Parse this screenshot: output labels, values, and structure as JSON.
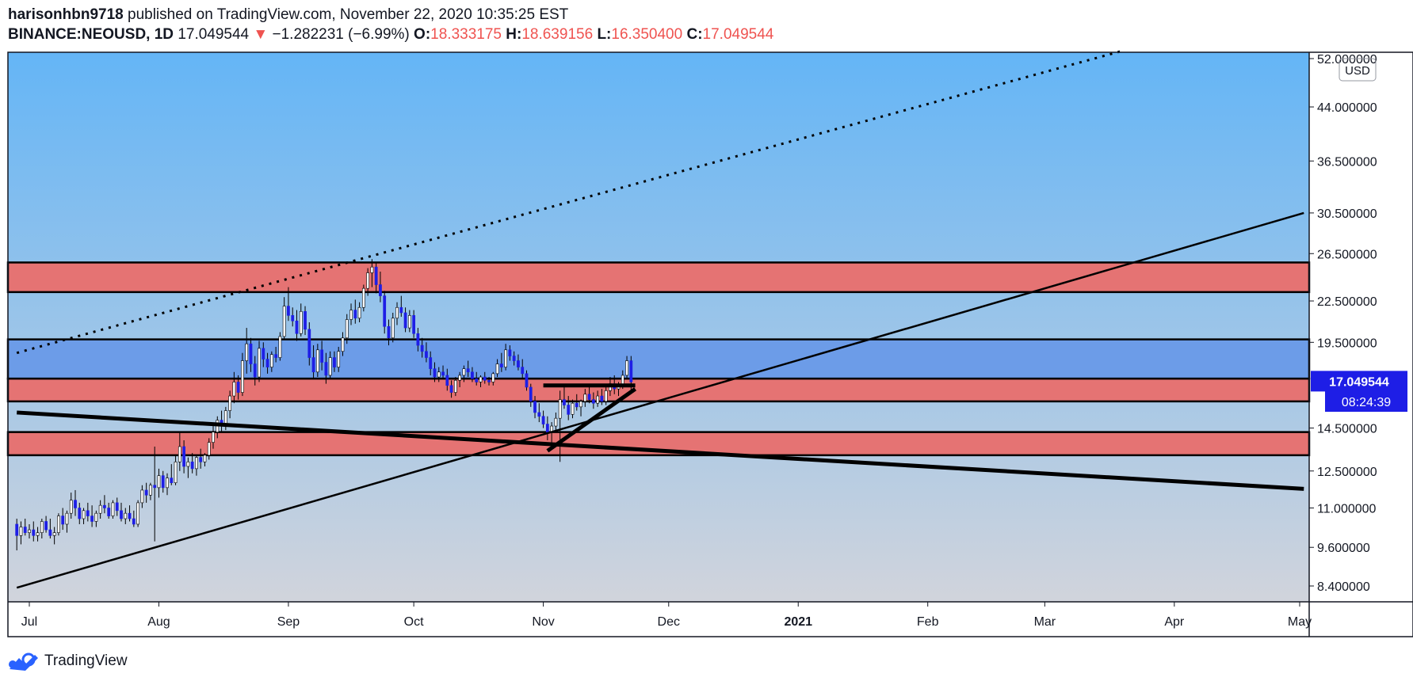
{
  "header": {
    "author": "harisonhbn9718",
    "published_text": "published on TradingView.com, November 22, 2020 10:35:25 EST",
    "symbol": "BINANCE:NEOUSD, 1D",
    "last": "17.049544",
    "change": "−1.282231 (−6.99%)",
    "o_label": "O:",
    "o": "18.333175",
    "h_label": "H:",
    "h": "18.639156",
    "l_label": "L:",
    "l": "16.350400",
    "c_label": "C:",
    "c": "17.049544"
  },
  "footer": {
    "brand": "TradingView",
    "logo_icon": "tradingview-logo-icon"
  },
  "colors": {
    "bg_top": "#64b5f6",
    "bg_bottom": "#d1d4dc",
    "zone_red": "#e57373",
    "zone_blue": "#6c9ce8",
    "candle_up": "#ffffff",
    "candle_down": "#1e1ee6",
    "price_label_bg": "#1e1ee6"
  },
  "chart_data": {
    "type": "candlestick",
    "scale": "log",
    "currency": "USD",
    "x_tick_labels": [
      "Jul",
      "Aug",
      "Sep",
      "Oct",
      "Nov",
      "Dec",
      "2021",
      "Feb",
      "Mar",
      "Apr",
      "May"
    ],
    "y_tick_labels": [
      "52.000000",
      "44.000000",
      "36.500000",
      "30.500000",
      "26.500000",
      "22.500000",
      "19.500000",
      "14.500000",
      "12.500000",
      "11.000000",
      "9.600000",
      "8.400000"
    ],
    "y_tick_values": [
      52,
      44,
      36.5,
      30.5,
      26.5,
      22.5,
      19.5,
      14.5,
      12.5,
      11,
      9.6,
      8.4
    ],
    "last_price_label": "17.049544",
    "countdown_label": "08:24:39",
    "zones": [
      {
        "color": "red",
        "from": 23.2,
        "to": 25.7
      },
      {
        "color": "blue",
        "from": 17.2,
        "to": 19.7
      },
      {
        "color": "red",
        "from": 15.9,
        "to": 17.2
      },
      {
        "color": "red",
        "from": 13.2,
        "to": 14.3
      }
    ],
    "trendlines": [
      {
        "style": "dotted",
        "from": [
          "2020-06-28",
          18.8
        ],
        "to": [
          "2021-03-20",
          53.5
        ]
      },
      {
        "style": "solid",
        "from": [
          "2020-06-28",
          8.35
        ],
        "to": [
          "2021-05-02",
          30.5
        ]
      },
      {
        "style": "thick",
        "from": [
          "2020-06-28",
          15.3
        ],
        "to": [
          "2021-05-02",
          11.75
        ]
      },
      {
        "style": "thick",
        "from": [
          "2020-11-01",
          16.8
        ],
        "to": [
          "2020-11-23",
          16.8
        ]
      },
      {
        "style": "thick",
        "from": [
          "2020-11-02",
          13.4
        ],
        "to": [
          "2020-11-23",
          16.6
        ]
      }
    ],
    "candles": [
      [
        "2020-06-28",
        10.4,
        10.6,
        9.5,
        10.0
      ],
      [
        "2020-06-29",
        10.0,
        10.5,
        9.7,
        10.3
      ],
      [
        "2020-06-30",
        10.3,
        10.6,
        10.0,
        10.1
      ],
      [
        "2020-07-01",
        10.1,
        10.4,
        9.9,
        10.2
      ],
      [
        "2020-07-02",
        10.2,
        10.5,
        9.8,
        10.0
      ],
      [
        "2020-07-03",
        10.0,
        10.3,
        9.8,
        10.1
      ],
      [
        "2020-07-04",
        10.1,
        10.6,
        9.9,
        10.5
      ],
      [
        "2020-07-05",
        10.5,
        10.7,
        10.1,
        10.2
      ],
      [
        "2020-07-06",
        10.2,
        10.6,
        9.9,
        10.0
      ],
      [
        "2020-07-07",
        10.0,
        10.3,
        9.7,
        10.1
      ],
      [
        "2020-07-08",
        10.1,
        10.8,
        10.0,
        10.7
      ],
      [
        "2020-07-09",
        10.7,
        11.0,
        10.2,
        10.4
      ],
      [
        "2020-07-10",
        10.4,
        10.9,
        10.1,
        10.8
      ],
      [
        "2020-07-11",
        10.8,
        11.6,
        10.6,
        11.3
      ],
      [
        "2020-07-12",
        11.3,
        11.7,
        10.7,
        11.0
      ],
      [
        "2020-07-13",
        11.0,
        11.2,
        10.4,
        10.6
      ],
      [
        "2020-07-14",
        10.6,
        11.0,
        10.4,
        10.9
      ],
      [
        "2020-07-15",
        10.9,
        11.2,
        10.5,
        10.7
      ],
      [
        "2020-07-16",
        10.7,
        11.1,
        10.3,
        10.5
      ],
      [
        "2020-07-17",
        10.5,
        10.9,
        10.3,
        10.8
      ],
      [
        "2020-07-18",
        10.8,
        11.3,
        10.6,
        11.1
      ],
      [
        "2020-07-19",
        11.1,
        11.5,
        10.8,
        11.0
      ],
      [
        "2020-07-20",
        11.0,
        11.2,
        10.6,
        10.7
      ],
      [
        "2020-07-21",
        10.7,
        11.3,
        10.6,
        11.2
      ],
      [
        "2020-07-22",
        11.2,
        11.4,
        10.7,
        10.9
      ],
      [
        "2020-07-23",
        10.9,
        11.2,
        10.5,
        10.6
      ],
      [
        "2020-07-24",
        10.6,
        11.0,
        10.4,
        10.8
      ],
      [
        "2020-07-25",
        10.8,
        11.1,
        10.5,
        10.6
      ],
      [
        "2020-07-26",
        10.6,
        10.9,
        10.3,
        10.4
      ],
      [
        "2020-07-27",
        10.4,
        11.3,
        10.3,
        11.2
      ],
      [
        "2020-07-28",
        11.2,
        11.9,
        11.0,
        11.7
      ],
      [
        "2020-07-29",
        11.7,
        12.0,
        11.2,
        11.5
      ],
      [
        "2020-07-30",
        11.5,
        12.0,
        11.3,
        11.9
      ],
      [
        "2020-07-31",
        11.9,
        13.6,
        9.8,
        11.8
      ],
      [
        "2020-08-01",
        11.8,
        12.6,
        11.4,
        12.3
      ],
      [
        "2020-08-02",
        12.3,
        12.5,
        11.6,
        11.8
      ],
      [
        "2020-08-03",
        11.8,
        12.4,
        11.5,
        12.2
      ],
      [
        "2020-08-04",
        12.2,
        12.8,
        11.9,
        12.0
      ],
      [
        "2020-08-05",
        12.0,
        13.2,
        11.9,
        12.9
      ],
      [
        "2020-08-06",
        12.9,
        14.3,
        12.5,
        13.6
      ],
      [
        "2020-08-07",
        13.6,
        13.9,
        12.4,
        12.7
      ],
      [
        "2020-08-08",
        12.7,
        13.1,
        12.2,
        12.9
      ],
      [
        "2020-08-09",
        12.9,
        13.3,
        12.4,
        12.6
      ],
      [
        "2020-08-10",
        12.6,
        13.2,
        12.3,
        13.1
      ],
      [
        "2020-08-11",
        13.1,
        13.5,
        12.6,
        12.9
      ],
      [
        "2020-08-12",
        12.9,
        13.3,
        12.7,
        13.2
      ],
      [
        "2020-08-13",
        13.2,
        14.0,
        13.0,
        13.8
      ],
      [
        "2020-08-14",
        13.8,
        14.6,
        13.5,
        14.3
      ],
      [
        "2020-08-15",
        14.3,
        15.1,
        14.0,
        14.9
      ],
      [
        "2020-08-16",
        14.9,
        15.4,
        14.3,
        14.6
      ],
      [
        "2020-08-17",
        14.6,
        15.6,
        14.4,
        15.4
      ],
      [
        "2020-08-18",
        15.4,
        16.5,
        15.0,
        16.2
      ],
      [
        "2020-08-19",
        16.2,
        17.6,
        15.8,
        17.0
      ],
      [
        "2020-08-20",
        17.0,
        17.4,
        16.0,
        16.4
      ],
      [
        "2020-08-21",
        16.4,
        18.8,
        16.2,
        18.3
      ],
      [
        "2020-08-22",
        18.3,
        20.5,
        17.5,
        19.4
      ],
      [
        "2020-08-23",
        19.4,
        19.8,
        17.6,
        18.1
      ],
      [
        "2020-08-24",
        18.1,
        18.6,
        16.8,
        17.3
      ],
      [
        "2020-08-25",
        17.3,
        19.6,
        17.0,
        19.1
      ],
      [
        "2020-08-26",
        19.1,
        19.5,
        17.9,
        18.4
      ],
      [
        "2020-08-27",
        18.4,
        18.8,
        17.5,
        17.9
      ],
      [
        "2020-08-28",
        17.9,
        18.9,
        17.6,
        18.7
      ],
      [
        "2020-08-29",
        18.7,
        19.2,
        18.2,
        18.5
      ],
      [
        "2020-08-30",
        18.5,
        20.2,
        18.3,
        19.9
      ],
      [
        "2020-08-31",
        19.9,
        22.8,
        19.7,
        22.1
      ],
      [
        "2020-09-01",
        22.1,
        23.6,
        21.0,
        21.4
      ],
      [
        "2020-09-02",
        21.4,
        22.0,
        20.6,
        21.0
      ],
      [
        "2020-09-03",
        21.0,
        21.8,
        19.6,
        20.1
      ],
      [
        "2020-09-04",
        20.1,
        22.3,
        19.9,
        21.7
      ],
      [
        "2020-09-05",
        21.7,
        22.1,
        20.0,
        20.4
      ],
      [
        "2020-09-06",
        20.4,
        20.9,
        18.0,
        18.5
      ],
      [
        "2020-09-07",
        18.5,
        19.3,
        17.2,
        17.6
      ],
      [
        "2020-09-08",
        17.6,
        19.4,
        17.3,
        19.0
      ],
      [
        "2020-09-09",
        19.0,
        19.6,
        17.7,
        18.2
      ],
      [
        "2020-09-10",
        18.2,
        18.8,
        16.9,
        17.4
      ],
      [
        "2020-09-11",
        17.4,
        18.9,
        17.2,
        18.5
      ],
      [
        "2020-09-12",
        18.5,
        18.9,
        17.6,
        17.9
      ],
      [
        "2020-09-13",
        17.9,
        19.2,
        17.6,
        18.9
      ],
      [
        "2020-09-14",
        18.9,
        20.2,
        18.6,
        19.8
      ],
      [
        "2020-09-15",
        19.8,
        21.5,
        19.4,
        21.1
      ],
      [
        "2020-09-16",
        21.1,
        22.3,
        20.7,
        21.8
      ],
      [
        "2020-09-17",
        21.8,
        22.6,
        20.8,
        21.2
      ],
      [
        "2020-09-18",
        21.2,
        22.4,
        20.9,
        22.0
      ],
      [
        "2020-09-19",
        22.0,
        23.8,
        21.7,
        23.5
      ],
      [
        "2020-09-20",
        23.5,
        25.2,
        22.9,
        24.8
      ],
      [
        "2020-09-21",
        24.8,
        26.0,
        23.6,
        25.3
      ],
      [
        "2020-09-22",
        25.3,
        25.7,
        23.1,
        23.8
      ],
      [
        "2020-09-23",
        23.8,
        24.9,
        22.4,
        22.9
      ],
      [
        "2020-09-24",
        22.9,
        23.3,
        20.1,
        20.6
      ],
      [
        "2020-09-25",
        20.6,
        21.1,
        19.3,
        19.8
      ],
      [
        "2020-09-26",
        19.8,
        21.6,
        19.5,
        21.2
      ],
      [
        "2020-09-27",
        21.2,
        22.4,
        20.7,
        22.0
      ],
      [
        "2020-09-28",
        22.0,
        22.9,
        21.3,
        21.6
      ],
      [
        "2020-09-29",
        21.6,
        22.0,
        20.2,
        20.5
      ],
      [
        "2020-09-30",
        20.5,
        21.8,
        20.2,
        21.4
      ],
      [
        "2020-10-01",
        21.4,
        21.8,
        19.8,
        20.1
      ],
      [
        "2020-10-02",
        20.1,
        20.5,
        18.9,
        19.3
      ],
      [
        "2020-10-03",
        19.3,
        19.8,
        18.5,
        18.9
      ],
      [
        "2020-10-04",
        18.9,
        19.5,
        18.2,
        18.5
      ],
      [
        "2020-10-05",
        18.5,
        18.9,
        17.4,
        17.8
      ],
      [
        "2020-10-06",
        17.8,
        18.2,
        17.0,
        17.3
      ],
      [
        "2020-10-07",
        17.3,
        17.9,
        17.0,
        17.6
      ],
      [
        "2020-10-08",
        17.6,
        18.0,
        17.2,
        17.4
      ],
      [
        "2020-10-09",
        17.4,
        17.8,
        16.5,
        16.8
      ],
      [
        "2020-10-10",
        16.8,
        17.1,
        16.1,
        16.4
      ],
      [
        "2020-10-11",
        16.4,
        17.3,
        16.2,
        17.1
      ],
      [
        "2020-10-12",
        17.1,
        17.6,
        16.7,
        17.4
      ],
      [
        "2020-10-13",
        17.4,
        18.0,
        17.0,
        17.8
      ],
      [
        "2020-10-14",
        17.8,
        18.3,
        17.3,
        17.6
      ],
      [
        "2020-10-15",
        17.6,
        17.9,
        17.0,
        17.2
      ],
      [
        "2020-10-16",
        17.2,
        17.6,
        16.8,
        17.0
      ],
      [
        "2020-10-17",
        17.0,
        17.4,
        16.7,
        17.3
      ],
      [
        "2020-10-18",
        17.3,
        17.6,
        16.9,
        17.1
      ],
      [
        "2020-10-19",
        17.1,
        17.3,
        16.8,
        17.0
      ],
      [
        "2020-10-20",
        17.0,
        17.6,
        16.8,
        17.5
      ],
      [
        "2020-10-21",
        17.5,
        18.4,
        17.3,
        18.1
      ],
      [
        "2020-10-22",
        18.1,
        18.8,
        17.6,
        17.9
      ],
      [
        "2020-10-23",
        17.9,
        19.4,
        17.7,
        19.0
      ],
      [
        "2020-10-24",
        19.0,
        19.3,
        18.3,
        18.6
      ],
      [
        "2020-10-25",
        18.6,
        18.9,
        18.0,
        18.3
      ],
      [
        "2020-10-26",
        18.3,
        18.7,
        17.7,
        17.9
      ],
      [
        "2020-10-27",
        17.9,
        18.4,
        17.2,
        17.5
      ],
      [
        "2020-10-28",
        17.5,
        17.7,
        16.5,
        16.7
      ],
      [
        "2020-10-29",
        16.7,
        16.9,
        15.6,
        15.9
      ],
      [
        "2020-10-30",
        15.9,
        16.2,
        15.0,
        15.3
      ],
      [
        "2020-10-31",
        15.3,
        15.8,
        14.8,
        15.1
      ],
      [
        "2020-11-01",
        15.1,
        15.4,
        14.5,
        14.7
      ],
      [
        "2020-11-02",
        14.7,
        15.1,
        13.9,
        14.3
      ],
      [
        "2020-11-03",
        14.3,
        14.8,
        13.7,
        14.6
      ],
      [
        "2020-11-04",
        14.6,
        15.3,
        14.3,
        15.0
      ],
      [
        "2020-11-05",
        15.0,
        16.5,
        12.9,
        16.0
      ],
      [
        "2020-11-06",
        16.0,
        16.8,
        15.5,
        15.7
      ],
      [
        "2020-11-07",
        15.7,
        16.2,
        14.9,
        15.2
      ],
      [
        "2020-11-08",
        15.2,
        16.0,
        15.0,
        15.8
      ],
      [
        "2020-11-09",
        15.8,
        16.3,
        15.4,
        15.6
      ],
      [
        "2020-11-10",
        15.6,
        16.0,
        15.1,
        15.9
      ],
      [
        "2020-11-11",
        15.9,
        16.6,
        15.6,
        16.3
      ],
      [
        "2020-11-12",
        16.3,
        16.7,
        15.8,
        16.0
      ],
      [
        "2020-11-13",
        16.0,
        16.4,
        15.5,
        15.8
      ],
      [
        "2020-11-14",
        15.8,
        16.5,
        15.6,
        16.2
      ],
      [
        "2020-11-15",
        16.2,
        16.6,
        15.7,
        15.9
      ],
      [
        "2020-11-16",
        15.9,
        16.8,
        15.7,
        16.5
      ],
      [
        "2020-11-17",
        16.5,
        17.3,
        16.2,
        16.9
      ],
      [
        "2020-11-18",
        16.9,
        17.4,
        16.3,
        16.6
      ],
      [
        "2020-11-19",
        16.6,
        17.0,
        16.2,
        16.8
      ],
      [
        "2020-11-20",
        16.8,
        17.7,
        16.6,
        17.4
      ],
      [
        "2020-11-21",
        17.4,
        18.6,
        17.2,
        18.3
      ],
      [
        "2020-11-22",
        18.3,
        18.6,
        16.4,
        17.0
      ]
    ]
  }
}
